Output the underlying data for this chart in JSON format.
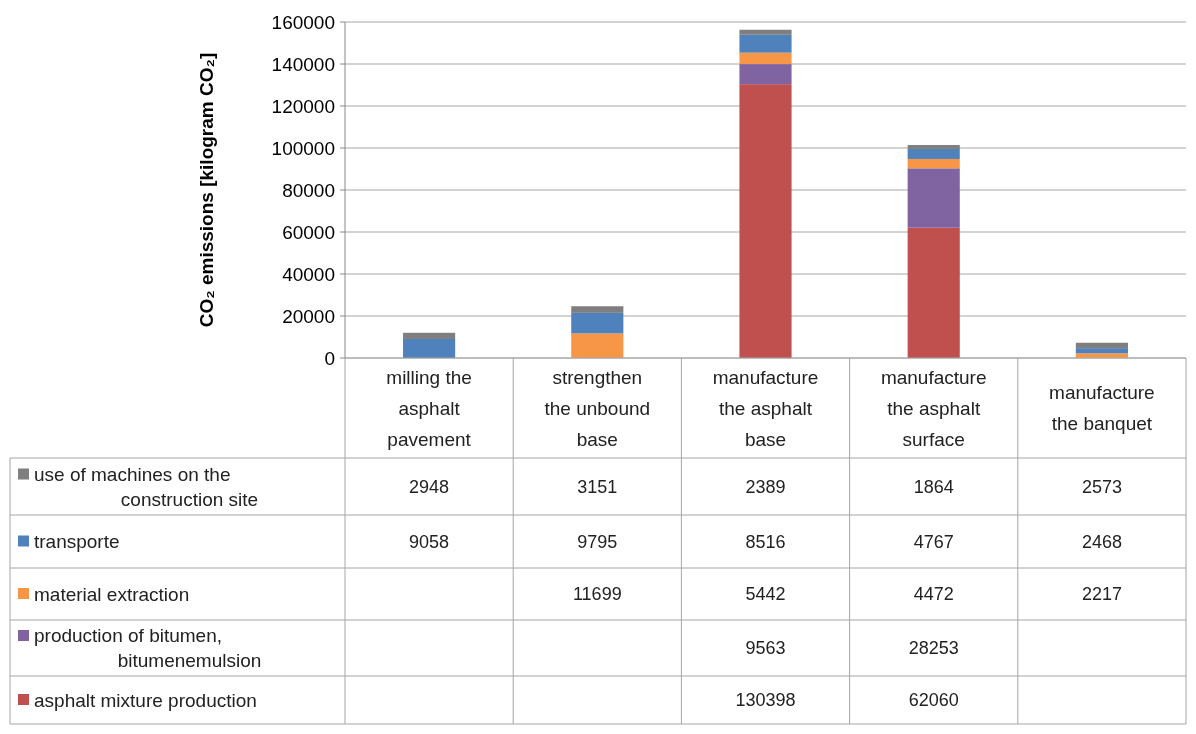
{
  "chart_data": {
    "type": "bar",
    "stacked": true,
    "ylabel": "CO₂ emissions [kilogram CO₂]",
    "categories": [
      "milling the asphalt pavement",
      "strengthen the unbound base",
      "manufacture the asphalt base",
      "manufacture the asphalt surface",
      "manufacture the banquet"
    ],
    "series": [
      {
        "name": "asphalt mixture production",
        "color": "#c0504d",
        "values": [
          null,
          null,
          130398,
          62060,
          null
        ]
      },
      {
        "name": "production of bitumen, bitumenemulsion",
        "color": "#8064a2",
        "values": [
          null,
          null,
          9563,
          28253,
          null
        ]
      },
      {
        "name": "material extraction",
        "color": "#f79646",
        "values": [
          null,
          11699,
          5442,
          4472,
          2217
        ]
      },
      {
        "name": "transporte",
        "color": "#4f81bd",
        "values": [
          9058,
          9795,
          8516,
          4767,
          2468
        ]
      },
      {
        "name": "use of machines on the construction site",
        "color": "#7f7f7f",
        "values": [
          2948,
          3151,
          2389,
          1864,
          2573
        ]
      }
    ],
    "ylim": [
      0,
      160000
    ],
    "yticks": [
      0,
      20000,
      40000,
      60000,
      80000,
      100000,
      120000,
      140000,
      160000
    ],
    "grid": "y",
    "legend": "bottom",
    "data_labels": true
  }
}
